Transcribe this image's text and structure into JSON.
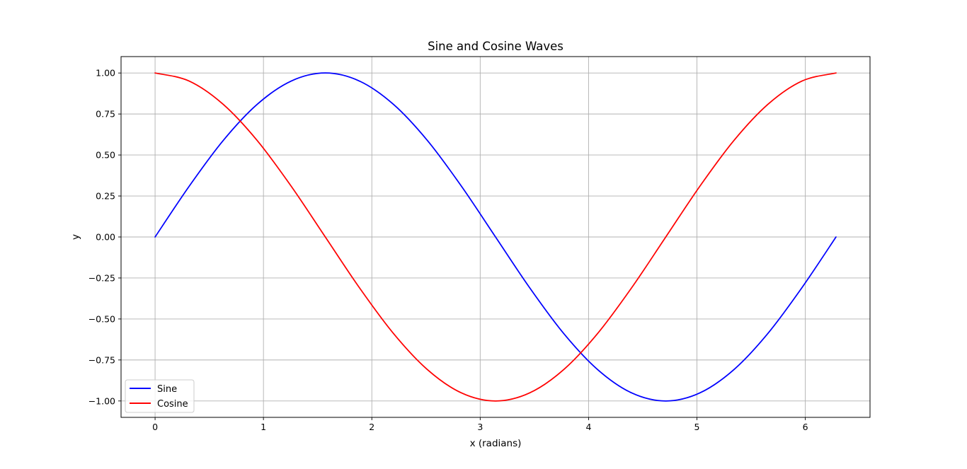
{
  "chart_data": {
    "type": "line",
    "title": "Sine and Cosine Waves",
    "xlabel": "x (radians)",
    "ylabel": "y",
    "xlim": [
      -0.314,
      6.597
    ],
    "ylim": [
      -1.1,
      1.1
    ],
    "grid": true,
    "legend_position": "lower left",
    "x_ticks": [
      0,
      1,
      2,
      3,
      4,
      5,
      6
    ],
    "x_tick_labels": [
      "0",
      "1",
      "2",
      "3",
      "4",
      "5",
      "6"
    ],
    "y_ticks": [
      1.0,
      0.75,
      0.5,
      0.25,
      0.0,
      -0.25,
      -0.5,
      -0.75,
      -1.0
    ],
    "y_tick_labels": [
      "1.00",
      "0.75",
      "0.50",
      "0.25",
      "0.00",
      "−0.25",
      "−0.50",
      "−0.75",
      "−1.00"
    ],
    "x": [
      0,
      0.3142,
      0.6283,
      0.9425,
      1.2566,
      1.5708,
      1.885,
      2.1991,
      2.5133,
      2.8274,
      3.1416,
      3.4558,
      3.7699,
      4.0841,
      4.3982,
      4.7124,
      5.0265,
      5.3407,
      5.6549,
      5.969,
      6.2832
    ],
    "series": [
      {
        "name": "Sine",
        "color": "#0000ff",
        "values": [
          0,
          0.309,
          0.588,
          0.809,
          0.951,
          1.0,
          0.951,
          0.809,
          0.588,
          0.309,
          0,
          -0.309,
          -0.588,
          -0.809,
          -0.951,
          -1.0,
          -0.951,
          -0.809,
          -0.588,
          -0.309,
          0
        ]
      },
      {
        "name": "Cosine",
        "color": "#ff0000",
        "values": [
          1.0,
          0.951,
          0.809,
          0.588,
          0.309,
          0,
          -0.309,
          -0.588,
          -0.809,
          -0.951,
          -1.0,
          -0.951,
          -0.809,
          -0.588,
          -0.309,
          0,
          0.309,
          0.588,
          0.809,
          0.951,
          1.0
        ]
      }
    ]
  }
}
